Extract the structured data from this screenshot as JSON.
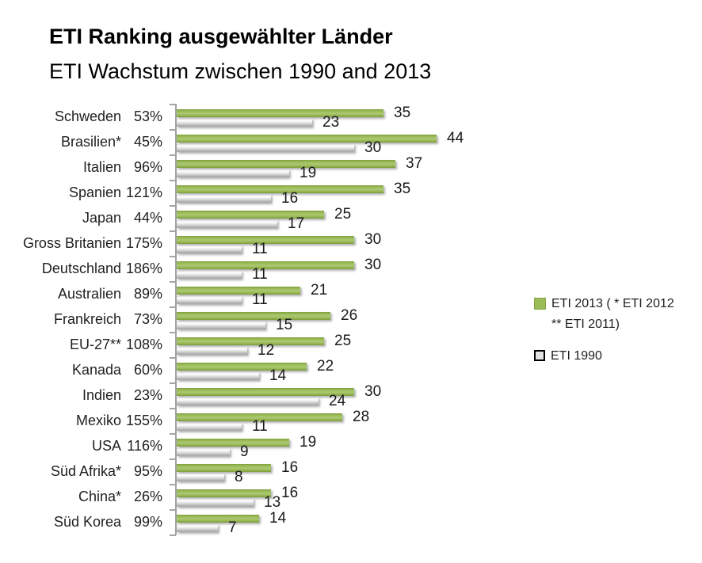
{
  "title": {
    "line1": "ETI Ranking ausgewählter Länder",
    "line2": "ETI Wachstum zwischen 1990 and 2013"
  },
  "chart_data": {
    "type": "bar",
    "orientation": "horizontal",
    "title": "ETI Ranking ausgewählter Länder",
    "subtitle": "ETI Wachstum zwischen 1990 and 2013",
    "categories": [
      "Schweden",
      "Brasilien*",
      "Italien",
      "Spanien",
      "Japan",
      "Gross Britanien",
      "Deutschland",
      "Australien",
      "Frankreich",
      "EU-27**",
      "Kanada",
      "Indien",
      "Mexiko",
      "USA",
      "Süd Afrika*",
      "China*",
      "Süd Korea"
    ],
    "category_growth_labels": [
      "53%",
      "45%",
      "96%",
      "121%",
      "44%",
      "175%",
      "186%",
      "89%",
      "73%",
      "108%",
      "60%",
      "23%",
      "155%",
      "116%",
      "95%",
      "26%",
      "99%"
    ],
    "series": [
      {
        "name": "ETI 2013",
        "note": "( * ETI 2012 ** ETI 2011)",
        "color": "#9bbb59",
        "values": [
          35,
          44,
          37,
          35,
          25,
          30,
          30,
          21,
          26,
          25,
          22,
          30,
          28,
          19,
          16,
          16,
          14
        ]
      },
      {
        "name": "ETI 1990",
        "color": "#d9d9d9",
        "values": [
          23,
          30,
          19,
          16,
          17,
          11,
          11,
          11,
          15,
          12,
          14,
          24,
          11,
          9,
          8,
          13,
          7
        ]
      }
    ],
    "value_axis": {
      "min": 0,
      "max": 59,
      "visible": false
    },
    "grid": false,
    "data_labels": true,
    "legend_position": "right"
  },
  "colors": {
    "green_bar": "#9bbb59",
    "gray_bar": "#d9d9d9",
    "axis": "#a3a3a3",
    "text": "#1f1f1f"
  }
}
